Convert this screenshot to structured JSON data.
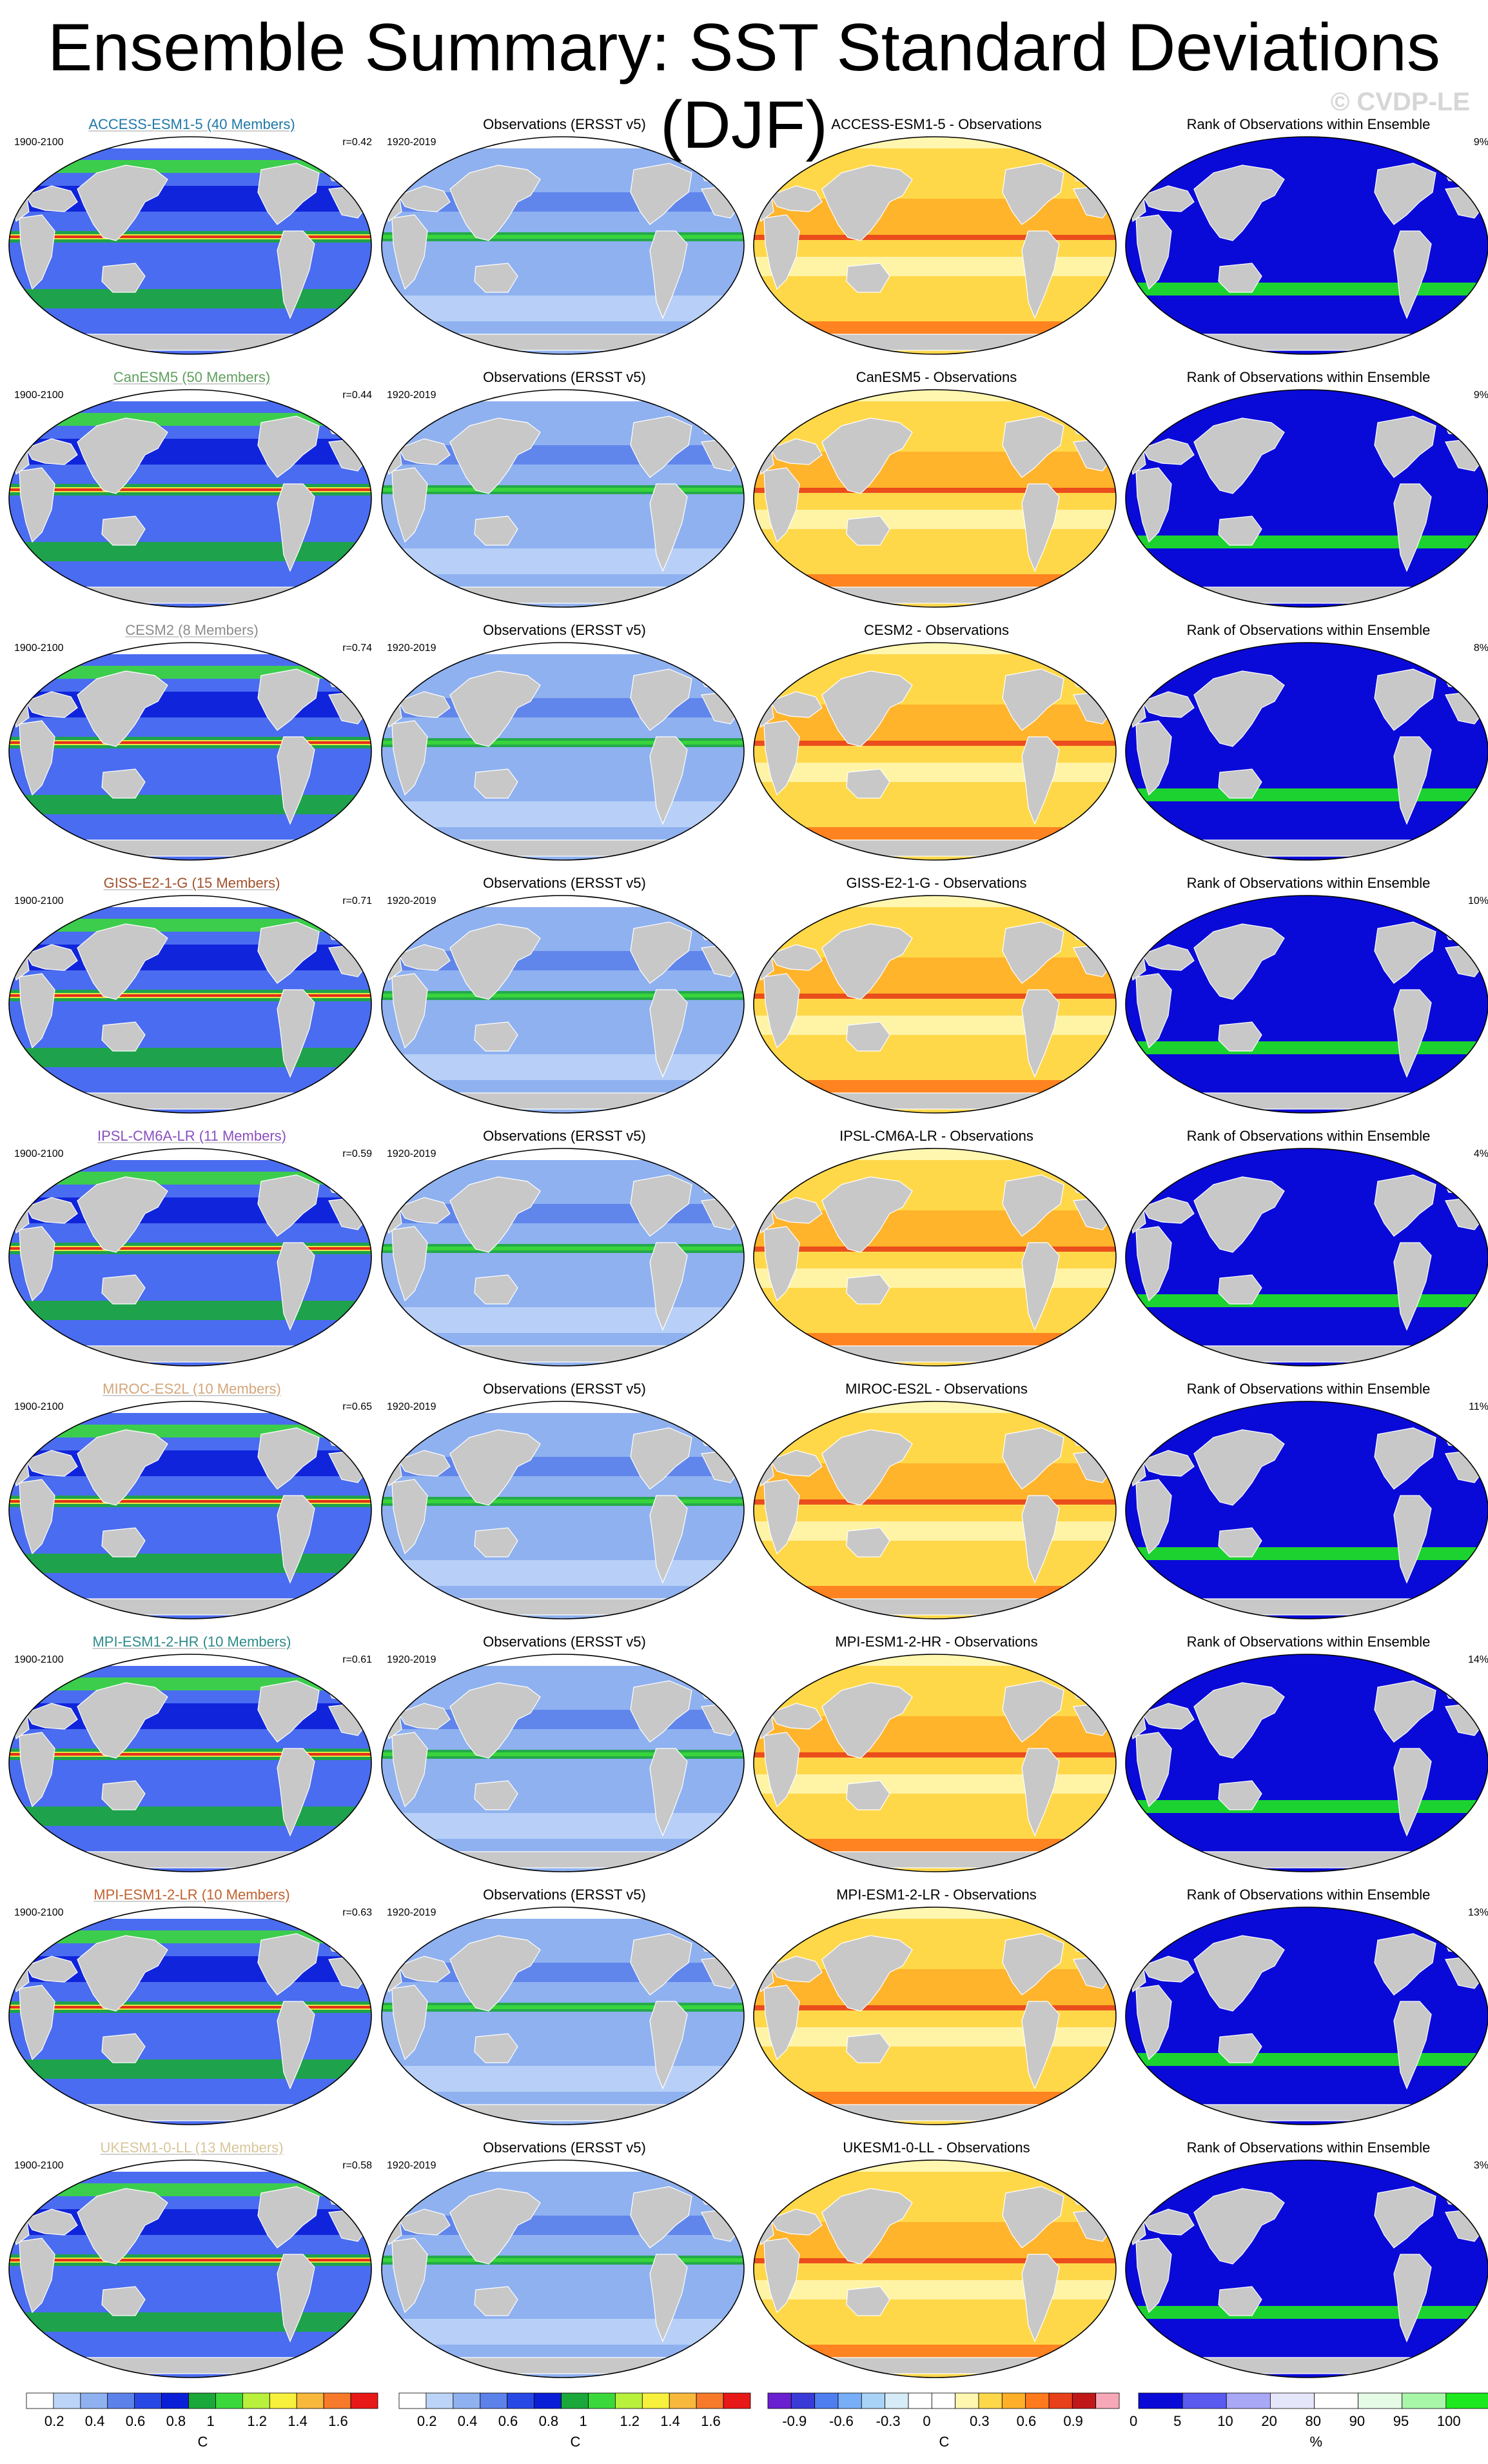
{
  "title": "Ensemble Summary: SST Standard Deviations (DJF)",
  "copyright": "© CVDP-LE",
  "rows": [
    {
      "model": "ACCESS-ESM1-5 (40 Members)",
      "model_color": "#1f78a8",
      "period": "1900-2100",
      "r": "r=0.42",
      "obs_period": "1920-2019",
      "obs_title": "Observations (ERSST v5)",
      "diff_title": "ACCESS-ESM1-5 - Observations",
      "rank_title": "Rank of Observations within Ensemble",
      "rank_pct": "9%"
    },
    {
      "model": "CanESM5 (50 Members)",
      "model_color": "#5f9f5f",
      "period": "1900-2100",
      "r": "r=0.44",
      "obs_period": "1920-2019",
      "obs_title": "Observations (ERSST v5)",
      "diff_title": "CanESM5 - Observations",
      "rank_title": "Rank of Observations within Ensemble",
      "rank_pct": "9%"
    },
    {
      "model": "CESM2 (8 Members)",
      "model_color": "#8c8c8c",
      "period": "1900-2100",
      "r": "r=0.74",
      "obs_period": "1920-2019",
      "obs_title": "Observations (ERSST v5)",
      "diff_title": "CESM2 - Observations",
      "rank_title": "Rank of Observations within Ensemble",
      "rank_pct": "8%"
    },
    {
      "model": "GISS-E2-1-G (15 Members)",
      "model_color": "#a0522d",
      "period": "1900-2100",
      "r": "r=0.71",
      "obs_period": "1920-2019",
      "obs_title": "Observations (ERSST v5)",
      "diff_title": "GISS-E2-1-G - Observations",
      "rank_title": "Rank of Observations within Ensemble",
      "rank_pct": "10%"
    },
    {
      "model": "IPSL-CM6A-LR (11 Members)",
      "model_color": "#8a4fbf",
      "period": "1900-2100",
      "r": "r=0.59",
      "obs_period": "1920-2019",
      "obs_title": "Observations (ERSST v5)",
      "diff_title": "IPSL-CM6A-LR - Observations",
      "rank_title": "Rank of Observations within Ensemble",
      "rank_pct": "4%"
    },
    {
      "model": "MIROC-ES2L (10 Members)",
      "model_color": "#d2a679",
      "period": "1900-2100",
      "r": "r=0.65",
      "obs_period": "1920-2019",
      "obs_title": "Observations (ERSST v5)",
      "diff_title": "MIROC-ES2L - Observations",
      "rank_title": "Rank of Observations within Ensemble",
      "rank_pct": "11%"
    },
    {
      "model": "MPI-ESM1-2-HR (10 Members)",
      "model_color": "#2e8b8b",
      "period": "1900-2100",
      "r": "r=0.61",
      "obs_period": "1920-2019",
      "obs_title": "Observations (ERSST v5)",
      "diff_title": "MPI-ESM1-2-HR - Observations",
      "rank_title": "Rank of Observations within Ensemble",
      "rank_pct": "14%"
    },
    {
      "model": "MPI-ESM1-2-LR (10 Members)",
      "model_color": "#c0622f",
      "period": "1900-2100",
      "r": "r=0.63",
      "obs_period": "1920-2019",
      "obs_title": "Observations (ERSST v5)",
      "diff_title": "MPI-ESM1-2-LR - Observations",
      "rank_title": "Rank of Observations within Ensemble",
      "rank_pct": "13%"
    },
    {
      "model": "UKESM1-0-LL (13 Members)",
      "model_color": "#d8c59a",
      "period": "1900-2100",
      "r": "r=0.58",
      "obs_period": "1920-2019",
      "obs_title": "Observations (ERSST v5)",
      "diff_title": "UKESM1-0-LL - Observations",
      "rank_title": "Rank of Observations within Ensemble",
      "rank_pct": "3%"
    }
  ],
  "colorbars": {
    "std": {
      "unit": "C",
      "ticks": [
        "0.2",
        "0.4",
        "0.6",
        "0.8",
        "1",
        "1.2",
        "1.4",
        "1.6"
      ],
      "colors": [
        "#ffffff",
        "#bcd4f7",
        "#8fb1f0",
        "#5c82ea",
        "#2848e6",
        "#0a1ed8",
        "#1aa83a",
        "#3bd83b",
        "#b8f03c",
        "#f7f03c",
        "#f7b83c",
        "#f77a2a",
        "#e81818"
      ]
    },
    "diff": {
      "unit": "C",
      "ticks": [
        "-0.9",
        "-0.6",
        "-0.3",
        "0",
        "0.3",
        "0.6",
        "0.9"
      ],
      "colors": [
        "#6a1fd0",
        "#3a3ad8",
        "#4f7ef0",
        "#78aef7",
        "#a8d3f7",
        "#d6ecf7",
        "#ffffff",
        "#ffffff",
        "#fff6b0",
        "#ffd84a",
        "#ffb028",
        "#ff7a1c",
        "#e8401a",
        "#c01818",
        "#f7a8b8"
      ]
    },
    "rank": {
      "unit": "%",
      "ticks": [
        "0",
        "5",
        "10",
        "20",
        "80",
        "90",
        "95",
        "100"
      ],
      "colors": [
        "#0a0ad8",
        "#5a5af0",
        "#a8a8f7",
        "#e6e6fb",
        "#ffffff",
        "#e6fbe6",
        "#a8f7a8",
        "#1ee81e"
      ]
    }
  }
}
